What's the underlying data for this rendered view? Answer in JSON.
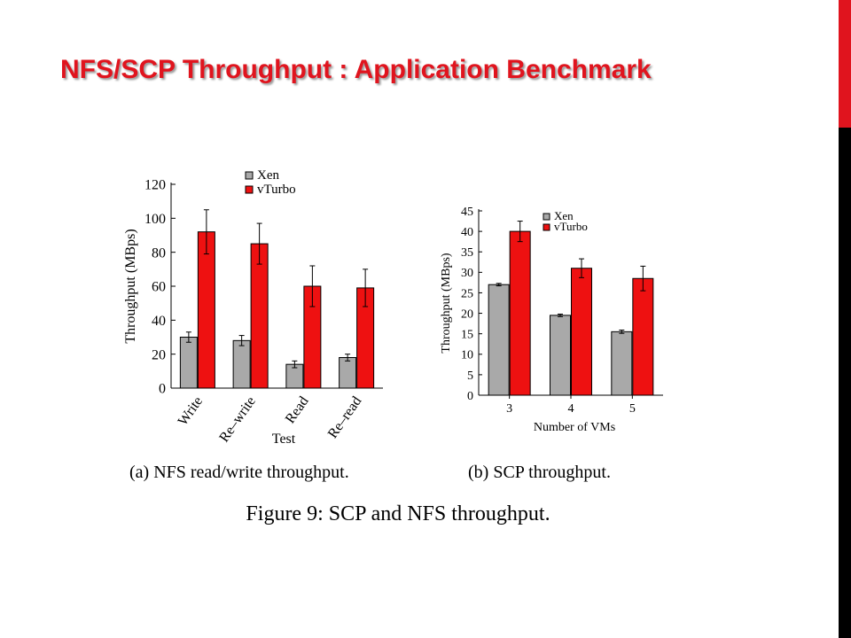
{
  "slide": {
    "title": "NFS/SCP Throughput : Application Benchmark"
  },
  "colors": {
    "title": "#e0141e",
    "xen": "#a9a9a9",
    "vturbo": "#ee1111",
    "sidebar_top": "#e0141e",
    "sidebar_bottom": "#000000"
  },
  "captions": {
    "a": "(a)  NFS read/write throughput.",
    "b": "(b)  SCP throughput.",
    "figure": "Figure 9:  SCP and NFS throughput."
  },
  "chart_data": [
    {
      "type": "bar",
      "title": "",
      "xlabel": "Test",
      "ylabel": "Throughput (MBps)",
      "ylim": [
        0,
        120
      ],
      "yticks": [
        0,
        20,
        40,
        60,
        80,
        100,
        120
      ],
      "categories": [
        "Write",
        "Re–write",
        "Read",
        "Re–read"
      ],
      "series": [
        {
          "name": "Xen",
          "values": [
            30,
            28,
            14,
            18
          ],
          "errors": [
            3,
            3,
            2,
            2
          ]
        },
        {
          "name": "vTurbo",
          "values": [
            92,
            85,
            60,
            59
          ],
          "errors": [
            13,
            12,
            12,
            11
          ]
        }
      ],
      "legend_position": "top"
    },
    {
      "type": "bar",
      "title": "",
      "xlabel": "Number of VMs",
      "ylabel": "Throughput (MBps)",
      "ylim": [
        0,
        45
      ],
      "yticks": [
        0,
        5,
        10,
        15,
        20,
        25,
        30,
        35,
        40,
        45
      ],
      "categories": [
        "3",
        "4",
        "5"
      ],
      "series": [
        {
          "name": "Xen",
          "values": [
            27,
            19.5,
            15.5
          ],
          "errors": [
            0.3,
            0.3,
            0.4
          ]
        },
        {
          "name": "vTurbo",
          "values": [
            40,
            31,
            28.5
          ],
          "errors": [
            2.5,
            2.3,
            3
          ]
        }
      ],
      "legend_position": "top-left"
    }
  ]
}
